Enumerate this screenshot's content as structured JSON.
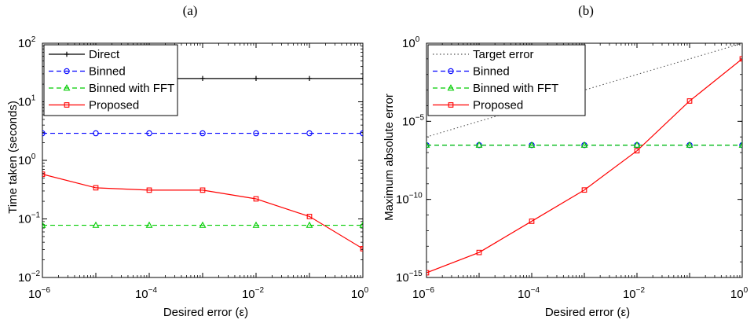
{
  "figure": {
    "panels": [
      "(a)",
      "(b)"
    ]
  },
  "chart_data": [
    {
      "type": "line",
      "panel": "(a)",
      "xlabel": "Desired error (ε)",
      "ylabel": "Time taken (seconds)",
      "xscale": "log",
      "yscale": "log",
      "xlim": [
        1e-06,
        1
      ],
      "ylim": [
        0.01,
        100
      ],
      "x_ticks": [
        {
          "base": "10",
          "exp": "−6"
        },
        {
          "base": "10",
          "exp": "−4"
        },
        {
          "base": "10",
          "exp": "−2"
        },
        {
          "base": "10",
          "exp": "0"
        }
      ],
      "y_ticks": [
        {
          "base": "10",
          "exp": "−2"
        },
        {
          "base": "10",
          "exp": "−1"
        },
        {
          "base": "10",
          "exp": "0"
        },
        {
          "base": "10",
          "exp": "1"
        },
        {
          "base": "10",
          "exp": "2"
        }
      ],
      "x": [
        1e-06,
        1e-05,
        0.0001,
        0.001,
        0.01,
        0.1,
        1
      ],
      "grid": false,
      "legend_position": "top-left",
      "series": [
        {
          "name": "Direct",
          "color": "#000000",
          "dash": "solid",
          "marker": "plus",
          "x": [
            1e-05,
            0.0001,
            0.001,
            0.01,
            0.1,
            1
          ],
          "values": [
            25,
            25,
            25,
            25,
            25,
            25
          ]
        },
        {
          "name": "Binned",
          "color": "#0000ff",
          "dash": "dashed",
          "marker": "circle",
          "x": [
            1e-06,
            1e-05,
            0.0001,
            0.001,
            0.01,
            0.1,
            1
          ],
          "values": [
            2.9,
            2.9,
            2.9,
            2.9,
            2.9,
            2.9,
            2.9
          ]
        },
        {
          "name": "Binned with FFT",
          "color": "#00cc00",
          "dash": "dashed",
          "marker": "triangle",
          "x": [
            1e-06,
            1e-05,
            0.0001,
            0.001,
            0.01,
            0.1,
            1
          ],
          "values": [
            0.078,
            0.078,
            0.078,
            0.078,
            0.078,
            0.078,
            0.078
          ]
        },
        {
          "name": "Proposed",
          "color": "#ff0000",
          "dash": "solid",
          "marker": "square",
          "x": [
            1e-06,
            1e-05,
            0.0001,
            0.001,
            0.01,
            0.1,
            1
          ],
          "values": [
            0.58,
            0.34,
            0.31,
            0.31,
            0.22,
            0.11,
            0.031
          ]
        }
      ]
    },
    {
      "type": "line",
      "panel": "(b)",
      "xlabel": "Desired error (ε)",
      "ylabel": "Maximum absolute error",
      "xscale": "log",
      "yscale": "log",
      "xlim": [
        1e-06,
        1
      ],
      "ylim": [
        1e-15,
        1
      ],
      "x_ticks": [
        {
          "base": "10",
          "exp": "−6"
        },
        {
          "base": "10",
          "exp": "−4"
        },
        {
          "base": "10",
          "exp": "−2"
        },
        {
          "base": "10",
          "exp": "0"
        }
      ],
      "y_ticks": [
        {
          "base": "10",
          "exp": "−15"
        },
        {
          "base": "10",
          "exp": "−10"
        },
        {
          "base": "10",
          "exp": "−5"
        },
        {
          "base": "10",
          "exp": "0"
        }
      ],
      "grid": false,
      "legend_position": "top-left",
      "series": [
        {
          "name": "Target error",
          "color": "#555555",
          "dash": "dotted",
          "marker": "none",
          "x": [
            1e-06,
            1
          ],
          "values": [
            1e-06,
            1
          ]
        },
        {
          "name": "Binned",
          "color": "#0000ff",
          "dash": "dashed",
          "marker": "circle",
          "x": [
            1e-06,
            1e-05,
            0.0001,
            0.001,
            0.01,
            0.1,
            1
          ],
          "values": [
            3e-07,
            3e-07,
            3e-07,
            3e-07,
            3e-07,
            3e-07,
            3e-07
          ]
        },
        {
          "name": "Binned with FFT",
          "color": "#00cc00",
          "dash": "dashed",
          "marker": "triangle",
          "x": [
            1e-06,
            1e-05,
            0.0001,
            0.001,
            0.01,
            0.1,
            1
          ],
          "values": [
            3e-07,
            3e-07,
            3e-07,
            3e-07,
            3e-07,
            3e-07,
            3e-07
          ]
        },
        {
          "name": "Proposed",
          "color": "#ff0000",
          "dash": "solid",
          "marker": "square",
          "x": [
            1e-06,
            1e-05,
            0.0001,
            0.001,
            0.01,
            0.1,
            1
          ],
          "values": [
            2e-15,
            4e-14,
            4e-12,
            4e-10,
            1.3e-07,
            0.0002,
            0.1
          ]
        }
      ]
    }
  ]
}
